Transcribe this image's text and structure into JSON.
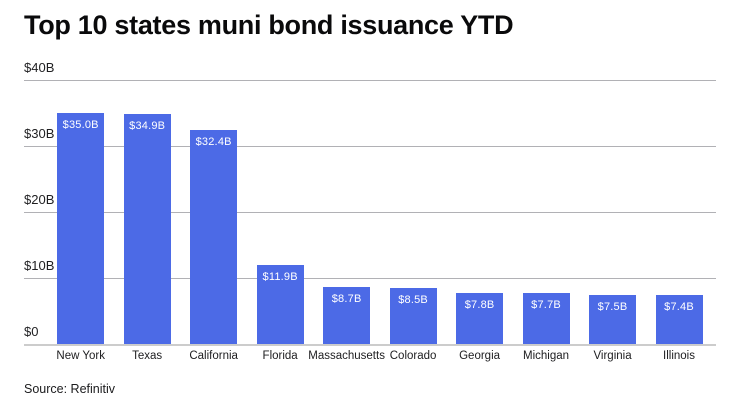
{
  "chart_data": {
    "type": "bar",
    "title": "Top 10 states muni bond issuance YTD",
    "categories": [
      "New York",
      "Texas",
      "California",
      "Florida",
      "Massachusetts",
      "Colorado",
      "Georgia",
      "Michigan",
      "Virginia",
      "Illinois"
    ],
    "values": [
      35.0,
      34.9,
      32.4,
      11.9,
      8.7,
      8.5,
      7.8,
      7.7,
      7.5,
      7.4
    ],
    "bar_labels": [
      "$35.0B",
      "$34.9B",
      "$32.4B",
      "$11.9B",
      "$8.7B",
      "$8.5B",
      "$7.8B",
      "$7.7B",
      "$7.5B",
      "$7.4B"
    ],
    "xlabel": "",
    "ylabel": "",
    "ylim": [
      0,
      40
    ],
    "yticks": [
      {
        "label": "$0",
        "value": 0
      },
      {
        "label": "$10B",
        "value": 10
      },
      {
        "label": "$20B",
        "value": 20
      },
      {
        "label": "$30B",
        "value": 30
      },
      {
        "label": "$40B",
        "value": 40
      }
    ],
    "grid": true,
    "legend": false,
    "bar_color": "#4c6ae6",
    "source": "Source: Refinitiv"
  }
}
